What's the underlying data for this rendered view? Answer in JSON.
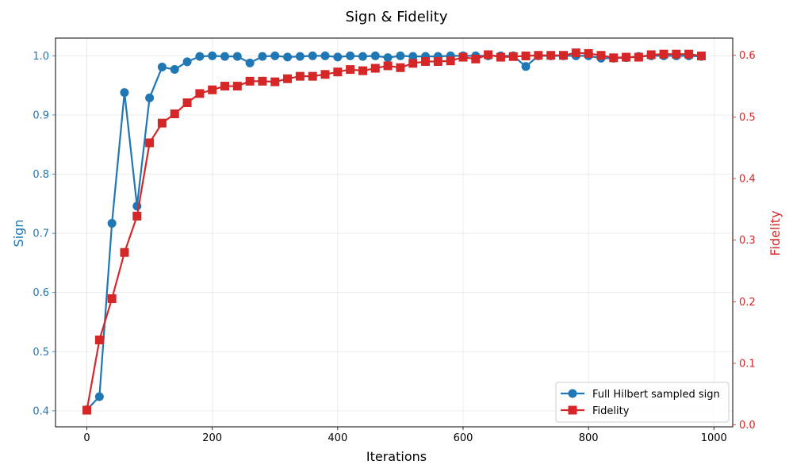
{
  "chart_data": {
    "type": "line",
    "title": "Sign & Fidelity",
    "xlabel": "Iterations",
    "ylabel_left": "Sign",
    "ylabel_right": "Fidelity",
    "xlim": [
      -50,
      1030
    ],
    "ylim_left": [
      0.373,
      1.03
    ],
    "ylim_right": [
      -0.003,
      0.628
    ],
    "x_ticks": [
      0,
      200,
      400,
      600,
      800,
      1000
    ],
    "y_ticks_left": [
      0.4,
      0.5,
      0.6,
      0.7,
      0.8,
      0.9,
      1.0
    ],
    "y_ticks_left_labels": [
      "0.4",
      "0.5",
      "0.6",
      "0.7",
      "0.8",
      "0.9",
      "1.0"
    ],
    "y_ticks_right": [
      0.0,
      0.1,
      0.2,
      0.3,
      0.4,
      0.5,
      0.6
    ],
    "y_ticks_right_labels": [
      "0.0",
      "0.1",
      "0.2",
      "0.3",
      "0.4",
      "0.5",
      "0.6"
    ],
    "grid": true,
    "legend_position": "lower-right",
    "colors": {
      "sign": "#1f77b4",
      "fidelity": "#d62728"
    },
    "x": [
      0,
      20,
      40,
      60,
      80,
      100,
      120,
      140,
      160,
      180,
      200,
      220,
      240,
      260,
      280,
      300,
      320,
      340,
      360,
      380,
      400,
      420,
      440,
      460,
      480,
      500,
      520,
      540,
      560,
      580,
      600,
      620,
      640,
      660,
      680,
      700,
      720,
      740,
      760,
      780,
      800,
      820,
      840,
      860,
      880,
      900,
      920,
      940,
      960,
      980
    ],
    "series": [
      {
        "name": "Full Hilbert sampled sign",
        "axis": "left",
        "marker": "circle",
        "values": [
          0.402,
          0.424,
          0.717,
          0.938,
          0.746,
          0.929,
          0.981,
          0.977,
          0.99,
          0.999,
          1.0,
          0.999,
          0.999,
          0.988,
          0.999,
          1.0,
          0.998,
          0.999,
          1.0,
          1.0,
          0.998,
          1.0,
          0.999,
          1.0,
          0.997,
          1.0,
          0.999,
          0.999,
          0.999,
          1.0,
          1.0,
          1.0,
          1.0,
          1.0,
          1.0,
          0.982,
          1.0,
          1.0,
          1.0,
          1.0,
          1.0,
          0.996,
          0.996,
          0.997,
          0.999,
          1.0,
          1.0,
          1.0,
          1.0,
          0.999
        ]
      },
      {
        "name": "Fidelity",
        "axis": "right",
        "marker": "square",
        "values": [
          0.024,
          0.138,
          0.205,
          0.28,
          0.339,
          0.458,
          0.49,
          0.505,
          0.523,
          0.538,
          0.544,
          0.55,
          0.55,
          0.558,
          0.558,
          0.557,
          0.562,
          0.566,
          0.566,
          0.569,
          0.573,
          0.577,
          0.575,
          0.579,
          0.583,
          0.58,
          0.587,
          0.59,
          0.59,
          0.591,
          0.597,
          0.594,
          0.601,
          0.597,
          0.598,
          0.599,
          0.6,
          0.6,
          0.6,
          0.604,
          0.603,
          0.6,
          0.596,
          0.597,
          0.597,
          0.601,
          0.602,
          0.602,
          0.602,
          0.599
        ]
      }
    ]
  }
}
